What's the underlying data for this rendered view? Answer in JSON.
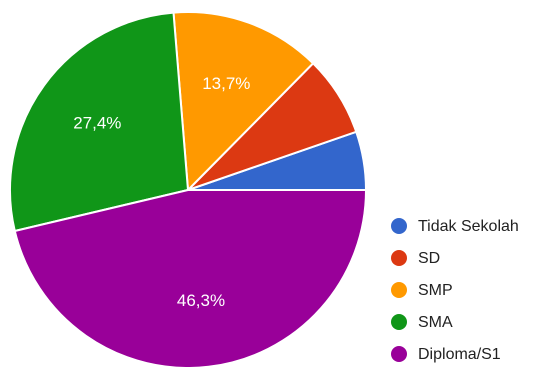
{
  "chart_data": {
    "type": "pie",
    "categories": [
      "Tidak Sekolah",
      "SD",
      "SMP",
      "SMA",
      "Diploma/S1"
    ],
    "values": [
      5.3,
      7.3,
      13.7,
      27.4,
      46.3
    ],
    "colors": [
      "#3366cc",
      "#dc3912",
      "#ff9900",
      "#109618",
      "#990099"
    ],
    "data_labels": [
      "",
      "",
      "13,7%",
      "27,4%",
      "46,3%"
    ],
    "start_angle_deg": 0,
    "direction": "counterclockwise",
    "legend_position": "right"
  }
}
